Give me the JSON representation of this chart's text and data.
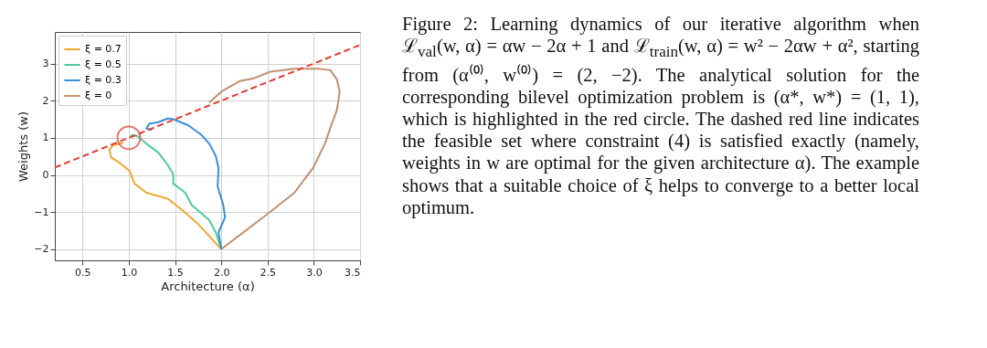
{
  "chart_data": {
    "type": "line",
    "xlabel": "Architecture (α)",
    "ylabel": "Weights (w)",
    "xlim": [
      0.2,
      3.5
    ],
    "ylim": [
      -2.3,
      3.85
    ],
    "xticks": [
      0.5,
      {
        "value": 1,
        "label": "1.0"
      },
      1.5,
      {
        "value": 2,
        "label": "2.0"
      },
      2.5,
      {
        "value": 3,
        "label": "3.0"
      },
      3.5
    ],
    "yticks": [
      {
        "value": -2,
        "label": "−2"
      },
      {
        "value": -1,
        "label": "−1"
      },
      0,
      1,
      2,
      3
    ],
    "grid": true,
    "legend": "top left",
    "series": [
      {
        "name": "ξ = 0.7",
        "color": "#f0a830",
        "x": [
          2.0,
          1.74,
          1.55,
          1.42,
          1.19,
          1.06,
          1.01,
          0.91,
          0.81,
          0.79,
          0.83,
          0.94
        ],
        "values": [
          -2.0,
          -1.3,
          -0.89,
          -0.64,
          -0.48,
          -0.23,
          0.1,
          0.31,
          0.47,
          0.68,
          0.8,
          0.86
        ]
      },
      {
        "name": "ξ = 0.5",
        "color": "#4ecb9a",
        "x": [
          2.0,
          1.94,
          1.87,
          1.68,
          1.61,
          1.48,
          1.48,
          1.42,
          1.32,
          1.19,
          1.09,
          1.02
        ],
        "values": [
          -2.0,
          -1.55,
          -1.22,
          -0.81,
          -0.48,
          -0.23,
          0.02,
          0.27,
          0.6,
          0.84,
          1.05,
          1.07
        ]
      },
      {
        "name": "ξ = 0.3",
        "color": "#3a8fd9",
        "x": [
          2.0,
          1.97,
          2.04,
          2.02,
          1.96,
          1.97,
          1.94,
          1.87,
          1.78,
          1.64,
          1.48,
          1.42,
          1.32,
          1.22,
          1.19,
          1.25
        ],
        "values": [
          -2.0,
          -1.55,
          -1.14,
          -0.8,
          -0.31,
          0.18,
          0.51,
          0.84,
          1.09,
          1.34,
          1.5,
          1.52,
          1.42,
          1.38,
          1.25,
          1.21
        ]
      },
      {
        "name": "ξ = 0",
        "color": "#c0906e",
        "x": [
          2.0,
          2.5,
          2.79,
          2.99,
          3.12,
          3.2,
          3.25,
          3.28,
          3.25,
          3.18,
          3.05,
          2.79,
          2.53,
          2.36,
          2.2,
          2.0,
          1.91,
          1.87
        ],
        "values": [
          -2.0,
          -1.05,
          -0.48,
          0.18,
          0.84,
          1.42,
          1.75,
          2.24,
          2.57,
          2.82,
          2.86,
          2.86,
          2.78,
          2.61,
          2.53,
          2.24,
          2.04,
          1.95
        ]
      },
      {
        "type": "line",
        "color": "#e03c31",
        "line_style": "dashed",
        "x": [
          0.2,
          3.5
        ],
        "values": [
          0.2,
          3.5
        ]
      },
      {
        "type": "scatter",
        "color": "#e03c31",
        "marker": "circle",
        "x": [
          1.0
        ],
        "values": [
          1.0
        ]
      }
    ],
    "annotations": [
      "Figure 2: Learning dynamics of our iterative algorithm when ℒ$_{val}$(w, α) = αw − 2α + 1 and ℒ$_{train}$(w, α) = w² − 2αw + α², starting from (α⁽⁰⁾, w⁽⁰⁾) = (2, −2). The analytical solution for the corresponding bilevel optimization problem is (α*, w*) = (1, 1), which is highlighted in the red circle. The dashed red line indicates the feasible set where constraint (4) is satisfied exactly (namely, weights in w are optimal for the given architecture α). The example shows that a suitable choice of ξ helps to converge to a better local optimum."
    ]
  }
}
